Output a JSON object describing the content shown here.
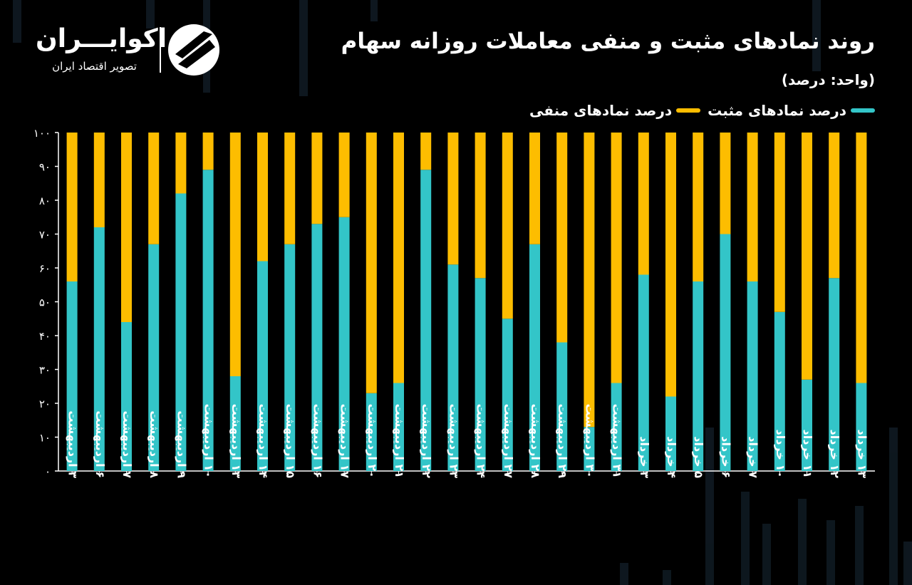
{
  "header": {
    "title": "روند نمادهای مثبت و منفی معاملات روزانه سهام",
    "unit": "(واحد: درصد)"
  },
  "logo": {
    "name": "اکوایـــران",
    "tagline": "تصویر اقتصاد ایران",
    "mark_icon": "ekoiran-logo-mark"
  },
  "legend": {
    "positive_label": "درصد نمادهای مثبت",
    "negative_label": "درصد نمادهای منفی"
  },
  "colors": {
    "background": "#000000",
    "positive": "#33c5c8",
    "negative": "#fdbd00",
    "axis": "#ffffff"
  },
  "chart_data": {
    "type": "bar",
    "stacked": true,
    "categories": [
      "۳ اردیبهشت",
      "۶ اردیبهشت",
      "۷ اردیبهشت",
      "۸ اردیبهشت",
      "۹ اردیبهشت",
      "۱۰ اردیبهشت",
      "۱۳ اردیبهشت",
      "۱۴ اردیبهشت",
      "۱۵ اردیبهشت",
      "۱۶ اردیبهشت",
      "۱۷ اردیبهشت",
      "۲۰ اردیبهشت",
      "۲۱ اردیبهشت",
      "۲۲ اردیبهشت",
      "۲۳ اردیبهشت",
      "۲۴ اردیبهشت",
      "۲۷ اردیبهشت",
      "۲۸ اردیبهشت",
      "۲۹ اردیبهشت",
      "۳۰ اردیبهشت",
      "۳۱ اردیبهشت",
      "۳ خرداد",
      "۴ خرداد",
      "۵ خرداد",
      "۶ خرداد",
      "۷ خرداد",
      "۱۰ خرداد",
      "۱۱ خرداد",
      "۱۲ خرداد",
      "۱۳ خرداد"
    ],
    "series": [
      {
        "name": "درصد نمادهای مثبت",
        "values": [
          56,
          72,
          44,
          67,
          82,
          89,
          28,
          62,
          67,
          73,
          75,
          23,
          26,
          89,
          61,
          57,
          45,
          67,
          38,
          13,
          26,
          58,
          22,
          56,
          70,
          56,
          47,
          27,
          57,
          26
        ]
      },
      {
        "name": "درصد نمادهای منفی",
        "values": [
          44,
          28,
          56,
          33,
          18,
          11,
          72,
          38,
          33,
          27,
          25,
          77,
          74,
          11,
          39,
          43,
          55,
          33,
          62,
          87,
          74,
          42,
          78,
          44,
          30,
          44,
          53,
          73,
          43,
          74
        ]
      }
    ],
    "yticks": [
      "۰",
      "۱۰",
      "۲۰",
      "۳۰",
      "۴۰",
      "۵۰",
      "۶۰",
      "۷۰",
      "۸۰",
      "۹۰",
      "۱۰۰"
    ],
    "ylim": [
      0,
      100
    ],
    "grid": false,
    "legend_position": "top-right"
  }
}
